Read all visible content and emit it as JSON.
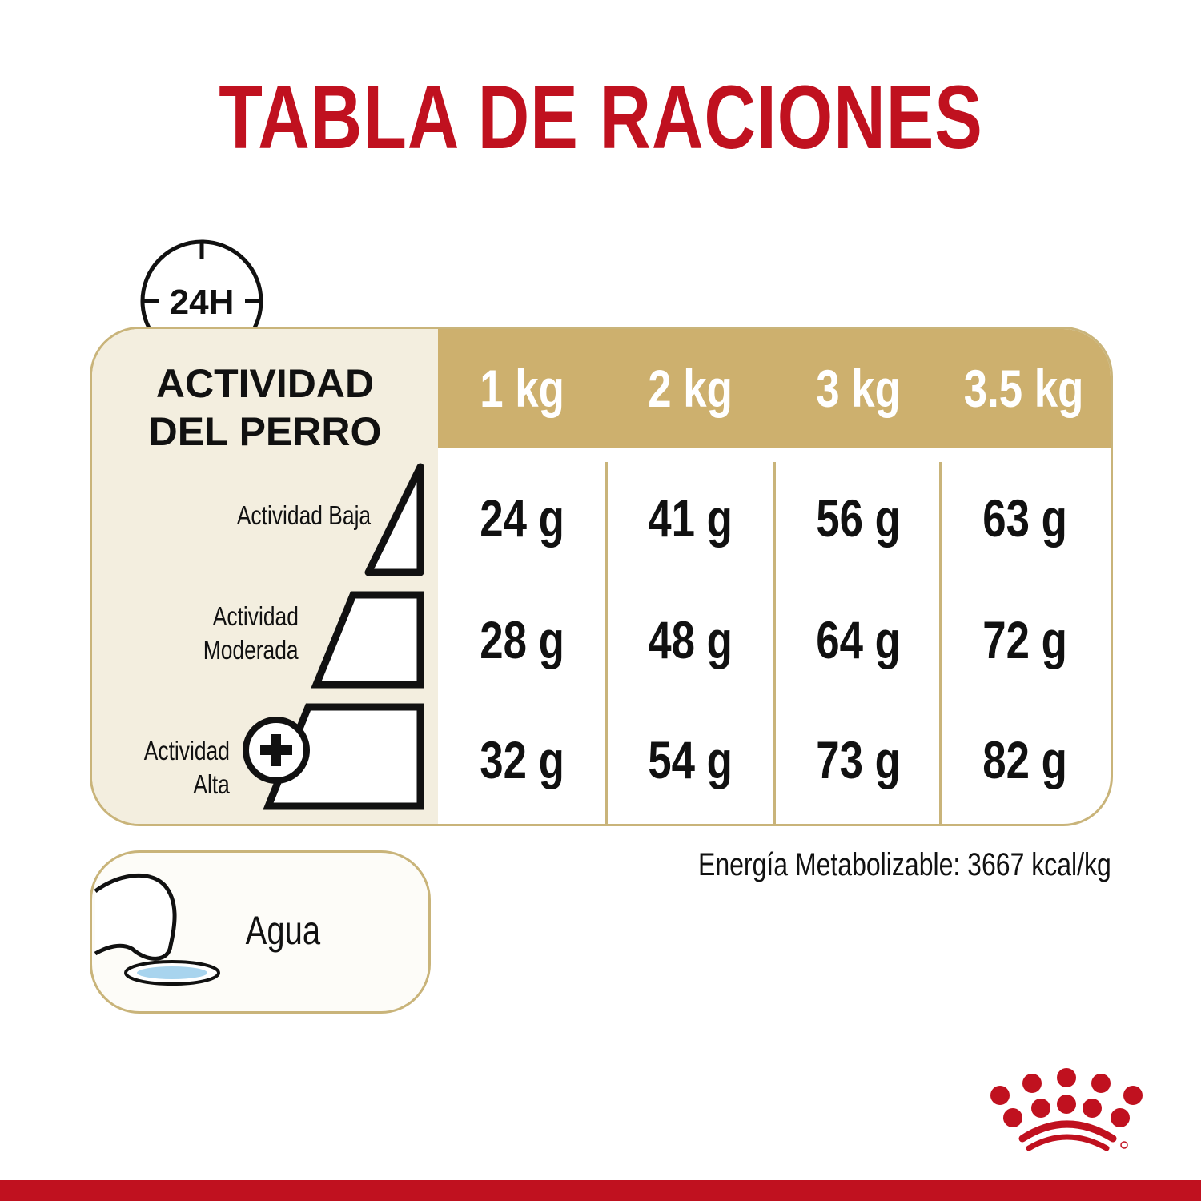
{
  "title": "TABLA DE RACIONES",
  "clock_label": "24H",
  "activity_header": [
    "ACTIVIDAD",
    "DEL PERRO"
  ],
  "weights": [
    "1 kg",
    "2 kg",
    "3 kg",
    "3.5 kg"
  ],
  "rows": [
    {
      "label": [
        "Actividad Baja"
      ],
      "values": [
        "24 g",
        "41 g",
        "56 g",
        "63 g"
      ]
    },
    {
      "label": [
        "Actividad",
        "Moderada"
      ],
      "values": [
        "28 g",
        "48 g",
        "64 g",
        "72 g"
      ]
    },
    {
      "label": [
        "Actividad",
        "Alta"
      ],
      "values": [
        "32 g",
        "54 g",
        "73 g",
        "82 g"
      ]
    }
  ],
  "energy": "Energía Metabolizable: 3667 kcal/kg",
  "water_label": "Agua",
  "icons": {
    "clock": "clock-24h-icon",
    "plus": "plus-circle-icon",
    "water": "dog-paw-water-bowl-icon",
    "logo": "royal-canin-crown-logo"
  },
  "colors": {
    "title": "#c0111f",
    "gold": "#cdb06e",
    "beige": "#f3eedf",
    "brand_red": "#c0111f",
    "water": "#a8d4ee"
  }
}
